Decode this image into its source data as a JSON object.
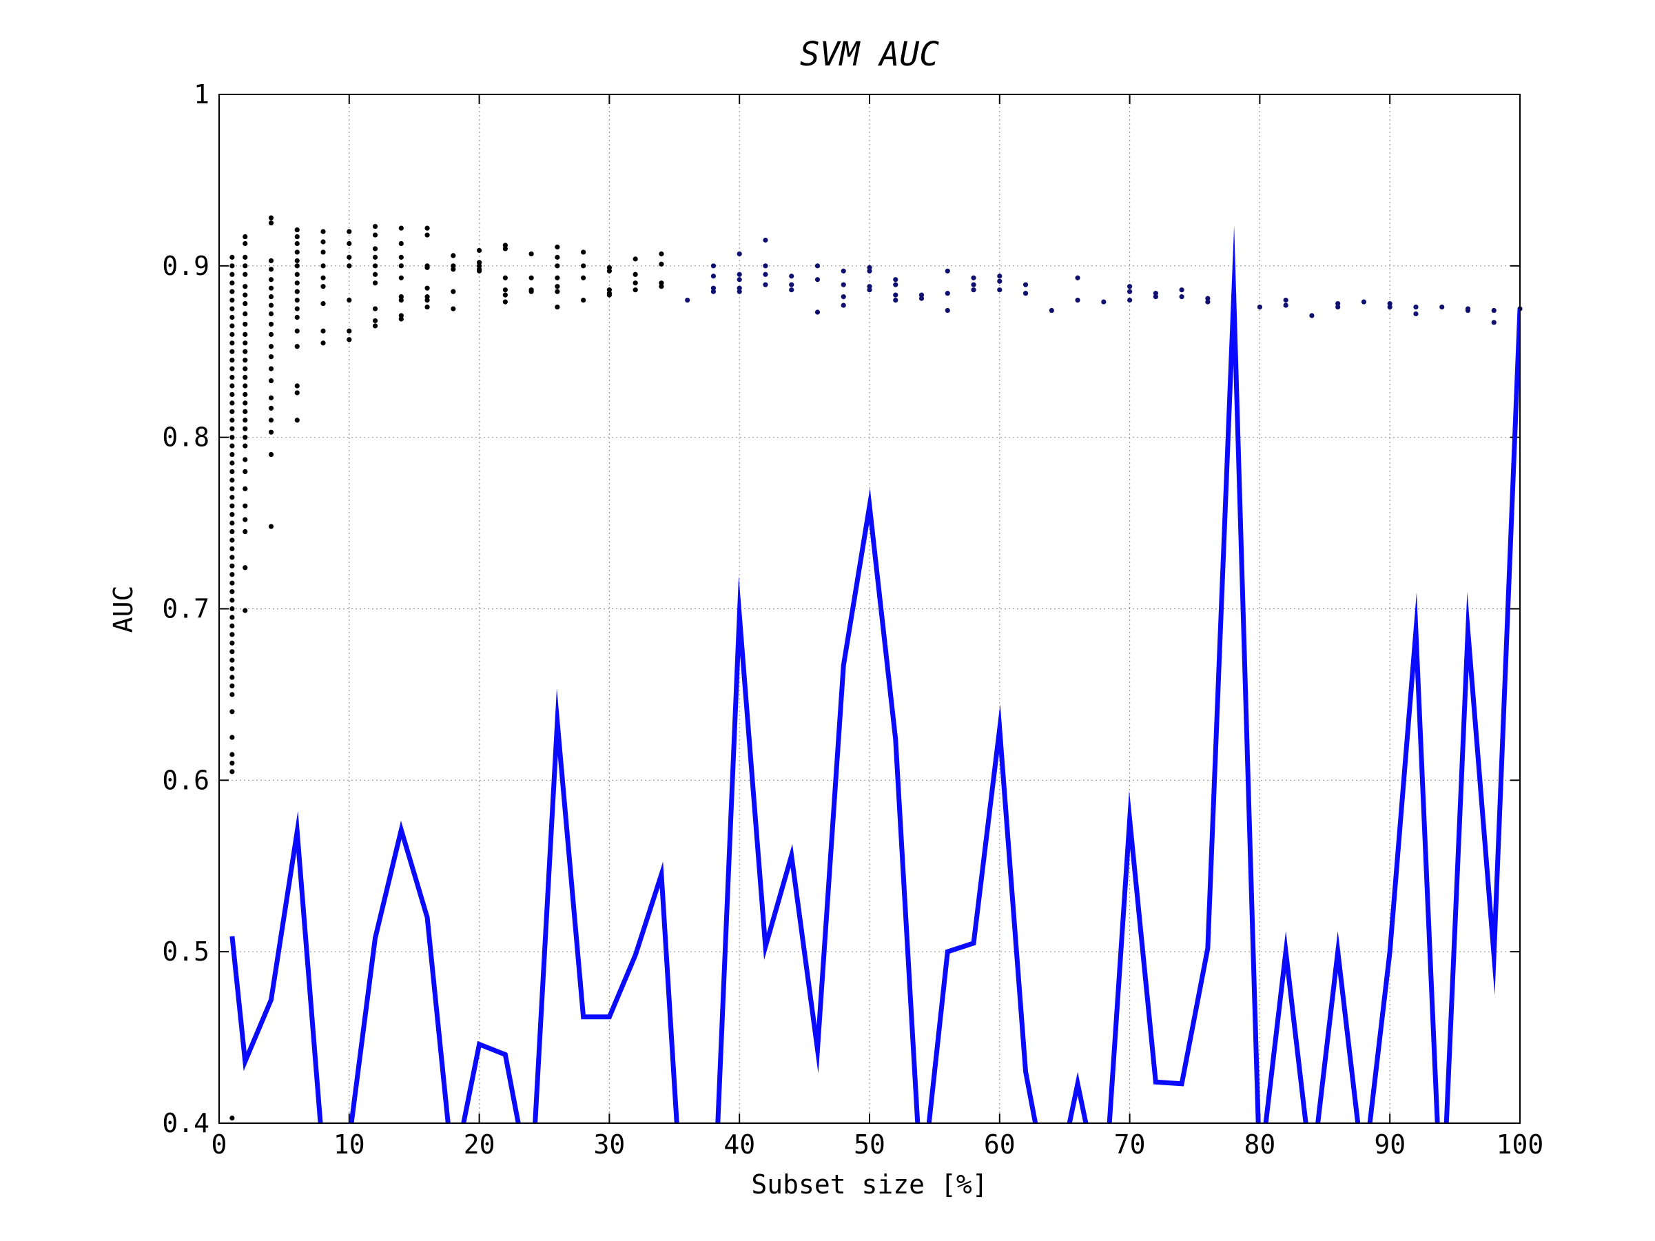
{
  "chart_data": {
    "type": "line",
    "title": "SVM AUC",
    "xlabel": "Subset size [%]",
    "ylabel": "AUC",
    "xlim": [
      0,
      100
    ],
    "ylim": [
      0.4,
      1
    ],
    "grid": true,
    "xticks": [
      0,
      10,
      20,
      30,
      40,
      50,
      60,
      70,
      80,
      90,
      100
    ],
    "xtick_labels": [
      "0",
      "10",
      "20",
      "30",
      "40",
      "50",
      "60",
      "70",
      "80",
      "90",
      "100"
    ],
    "yticks": [
      0.4,
      0.5,
      0.6,
      0.7,
      0.8,
      0.9,
      1
    ],
    "ytick_labels": [
      "0.4",
      "0.5",
      "0.6",
      "0.7",
      "0.8",
      "0.9",
      "1"
    ],
    "colors": {
      "line": "#0a0aff",
      "scatter_black": "#000000",
      "scatter_blue": "#101070"
    },
    "series": [
      {
        "type": "line",
        "x": [
          1,
          2,
          4,
          6,
          8,
          10,
          12,
          14,
          16,
          18,
          20,
          22,
          24,
          26,
          28,
          30,
          32,
          34,
          36,
          38,
          40,
          42,
          44,
          46,
          48,
          50,
          52,
          54,
          56,
          58,
          60,
          62,
          64,
          66,
          68,
          70,
          72,
          74,
          76,
          78,
          80,
          82,
          84,
          86,
          88,
          90,
          92,
          94,
          96,
          98,
          100
        ],
        "y": [
          0.509,
          0.436,
          0.472,
          0.57,
          0.38,
          0.39,
          0.508,
          0.571,
          0.52,
          0.37,
          0.446,
          0.44,
          0.36,
          0.634,
          0.462,
          0.462,
          0.498,
          0.545,
          0.3,
          0.34,
          0.696,
          0.503,
          0.556,
          0.443,
          0.667,
          0.76,
          0.624,
          0.36,
          0.5,
          0.505,
          0.63,
          0.43,
          0.35,
          0.423,
          0.35,
          0.577,
          0.424,
          0.423,
          0.502,
          0.883,
          0.37,
          0.5,
          0.37,
          0.5,
          0.37,
          0.5,
          0.687,
          0.34,
          0.687,
          0.498,
          0.875
        ]
      },
      {
        "type": "scatter",
        "groups": [
          {
            "x": 1,
            "y": [
              0.905,
              0.9,
              0.895,
              0.89,
              0.885,
              0.88,
              0.875,
              0.87,
              0.865,
              0.86,
              0.855,
              0.85,
              0.845,
              0.84,
              0.835,
              0.83,
              0.825,
              0.82,
              0.815,
              0.81,
              0.805,
              0.8,
              0.795,
              0.79,
              0.785,
              0.78,
              0.775,
              0.77,
              0.765,
              0.76,
              0.755,
              0.75,
              0.745,
              0.74,
              0.735,
              0.73,
              0.725,
              0.72,
              0.715,
              0.71,
              0.705,
              0.7,
              0.695,
              0.69,
              0.685,
              0.68,
              0.675,
              0.67,
              0.665,
              0.66,
              0.655,
              0.65,
              0.64,
              0.625,
              0.615,
              0.61,
              0.605,
              0.403
            ]
          },
          {
            "x": 2,
            "y": [
              0.917,
              0.913,
              0.905,
              0.9,
              0.895,
              0.888,
              0.883,
              0.878,
              0.872,
              0.866,
              0.86,
              0.855,
              0.85,
              0.845,
              0.84,
              0.835,
              0.83,
              0.825,
              0.82,
              0.815,
              0.81,
              0.805,
              0.8,
              0.795,
              0.787,
              0.78,
              0.77,
              0.76,
              0.752,
              0.745,
              0.724,
              0.699
            ]
          },
          {
            "x": 4,
            "y": [
              0.928,
              0.925,
              0.903,
              0.898,
              0.892,
              0.887,
              0.882,
              0.877,
              0.872,
              0.866,
              0.86,
              0.853,
              0.847,
              0.84,
              0.833,
              0.823,
              0.817,
              0.81,
              0.803,
              0.79,
              0.748
            ]
          },
          {
            "x": 6,
            "y": [
              0.921,
              0.917,
              0.913,
              0.908,
              0.903,
              0.9,
              0.895,
              0.89,
              0.885,
              0.88,
              0.875,
              0.87,
              0.862,
              0.853,
              0.83,
              0.826,
              0.81
            ]
          },
          {
            "x": 8,
            "y": [
              0.92,
              0.914,
              0.908,
              0.9,
              0.893,
              0.888,
              0.878,
              0.862,
              0.855
            ]
          },
          {
            "x": 10,
            "y": [
              0.92,
              0.913,
              0.905,
              0.9,
              0.88,
              0.862,
              0.857
            ]
          },
          {
            "x": 12,
            "y": [
              0.923,
              0.918,
              0.91,
              0.905,
              0.9,
              0.895,
              0.89,
              0.875,
              0.868,
              0.865
            ]
          },
          {
            "x": 14,
            "y": [
              0.922,
              0.913,
              0.905,
              0.9,
              0.893,
              0.882,
              0.88,
              0.871,
              0.869
            ]
          },
          {
            "x": 16,
            "y": [
              0.922,
              0.918,
              0.9,
              0.899,
              0.887,
              0.882,
              0.88,
              0.876
            ]
          },
          {
            "x": 18,
            "y": [
              0.906,
              0.9,
              0.898,
              0.885,
              0.875
            ]
          },
          {
            "x": 20,
            "y": [
              0.909,
              0.902,
              0.9,
              0.898,
              0.897
            ]
          },
          {
            "x": 22,
            "y": [
              0.912,
              0.91,
              0.893,
              0.886,
              0.883,
              0.879
            ]
          },
          {
            "x": 24,
            "y": [
              0.907,
              0.893,
              0.886,
              0.885
            ]
          },
          {
            "x": 26,
            "y": [
              0.911,
              0.905,
              0.9,
              0.893,
              0.888,
              0.885,
              0.876
            ]
          },
          {
            "x": 28,
            "y": [
              0.908,
              0.9,
              0.893,
              0.88
            ]
          },
          {
            "x": 30,
            "y": [
              0.899,
              0.897,
              0.886,
              0.884,
              0.883
            ]
          },
          {
            "x": 32,
            "y": [
              0.904,
              0.895,
              0.89,
              0.886
            ]
          },
          {
            "x": 34,
            "y": [
              0.907,
              0.901,
              0.89,
              0.888
            ]
          },
          {
            "x": 36,
            "y": [
              0.88
            ]
          },
          {
            "x": 38,
            "y": [
              0.9,
              0.894,
              0.887,
              0.885
            ]
          },
          {
            "x": 40,
            "y": [
              0.907,
              0.895,
              0.892,
              0.887,
              0.885
            ]
          },
          {
            "x": 42,
            "y": [
              0.915,
              0.9,
              0.895,
              0.889
            ]
          },
          {
            "x": 44,
            "y": [
              0.894,
              0.889,
              0.886
            ]
          },
          {
            "x": 46,
            "y": [
              0.9,
              0.892,
              0.873
            ]
          },
          {
            "x": 48,
            "y": [
              0.897,
              0.889,
              0.882,
              0.877
            ]
          },
          {
            "x": 50,
            "y": [
              0.899,
              0.897,
              0.888,
              0.886
            ]
          },
          {
            "x": 52,
            "y": [
              0.892,
              0.889,
              0.883,
              0.88
            ]
          },
          {
            "x": 54,
            "y": [
              0.883,
              0.881
            ]
          },
          {
            "x": 56,
            "y": [
              0.897,
              0.884,
              0.874
            ]
          },
          {
            "x": 58,
            "y": [
              0.893,
              0.889,
              0.886
            ]
          },
          {
            "x": 60,
            "y": [
              0.894,
              0.891,
              0.886
            ]
          },
          {
            "x": 62,
            "y": [
              0.889,
              0.884
            ]
          },
          {
            "x": 64,
            "y": [
              0.874
            ]
          },
          {
            "x": 66,
            "y": [
              0.893,
              0.88
            ]
          },
          {
            "x": 68,
            "y": [
              0.879
            ]
          },
          {
            "x": 70,
            "y": [
              0.888,
              0.885,
              0.88
            ]
          },
          {
            "x": 72,
            "y": [
              0.884,
              0.882
            ]
          },
          {
            "x": 74,
            "y": [
              0.886,
              0.882
            ]
          },
          {
            "x": 76,
            "y": [
              0.881,
              0.879
            ]
          },
          {
            "x": 78,
            "y": [
              0.883,
              0.882
            ]
          },
          {
            "x": 80,
            "y": [
              0.876
            ]
          },
          {
            "x": 82,
            "y": [
              0.88,
              0.877
            ]
          },
          {
            "x": 84,
            "y": [
              0.871
            ]
          },
          {
            "x": 86,
            "y": [
              0.878,
              0.876
            ]
          },
          {
            "x": 88,
            "y": [
              0.879
            ]
          },
          {
            "x": 90,
            "y": [
              0.878,
              0.876
            ]
          },
          {
            "x": 92,
            "y": [
              0.876,
              0.872
            ]
          },
          {
            "x": 94,
            "y": [
              0.876
            ]
          },
          {
            "x": 96,
            "y": [
              0.875,
              0.874
            ]
          },
          {
            "x": 98,
            "y": [
              0.874,
              0.867
            ]
          },
          {
            "x": 100,
            "y": [
              0.875
            ]
          }
        ]
      }
    ]
  }
}
